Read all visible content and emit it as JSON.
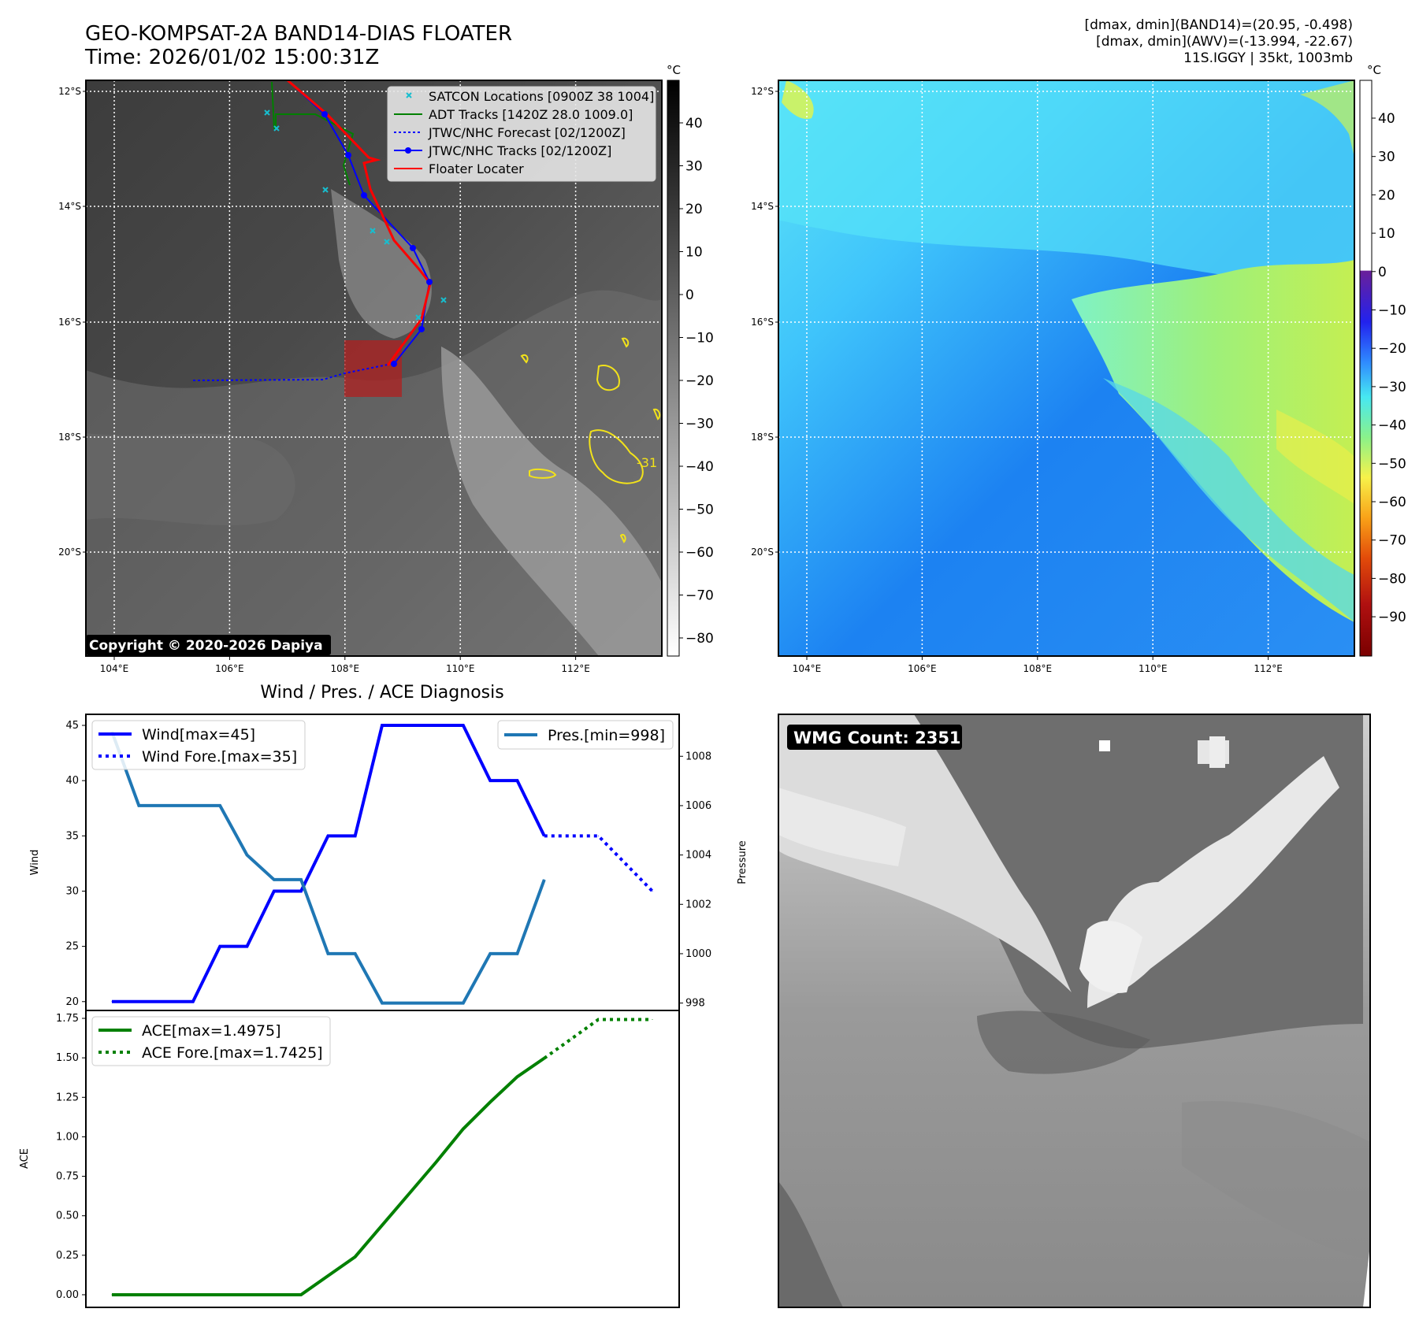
{
  "header": {
    "title_line1": "GEO-KOMPSAT-2A BAND14-DIAS FLOATER",
    "title_line2": "Time: 2026/01/02 15:00:31Z",
    "info_line1": "[dmax, dmin](BAND14)=(20.95, -0.498)",
    "info_line2": "[dmax, dmin](AWV)=(-13.994, -22.67)",
    "info_line3": "11S.IGGY | 35kt, 1003mb"
  },
  "map_common": {
    "lon_ticks": [
      "104°E",
      "106°E",
      "108°E",
      "110°E",
      "112°E"
    ],
    "lat_ticks": [
      "12°S",
      "14°S",
      "16°S",
      "18°S",
      "20°S"
    ]
  },
  "ir_panel": {
    "unit": "°C",
    "colorbar_ticks": [
      "40",
      "30",
      "20",
      "10",
      "0",
      "−10",
      "−20",
      "−30",
      "−40",
      "−50",
      "−60",
      "−70",
      "−80"
    ],
    "copyright": "Copyright © 2020-2026 Dapiya",
    "contour_label": "-31",
    "legend": [
      {
        "label": "SATCON Locations [0900Z 38 1004]",
        "color": "#17becf",
        "style": "x"
      },
      {
        "label": "ADT Tracks [1420Z 28.0 1009.0]",
        "color": "#008000",
        "style": "solid"
      },
      {
        "label": "JTWC/NHC Forecast [02/1200Z]",
        "color": "#0000ff",
        "style": "dotted"
      },
      {
        "label": "JTWC/NHC Tracks [02/1200Z]",
        "color": "#0000ff",
        "style": "solid-dot"
      },
      {
        "label": "Floater Locater",
        "color": "#ff0000",
        "style": "solid"
      }
    ]
  },
  "wv_panel": {
    "unit": "°C",
    "colorbar_ticks": [
      "40",
      "30",
      "20",
      "10",
      "0",
      "−10",
      "−20",
      "−30",
      "−40",
      "−50",
      "−60",
      "−70",
      "−80",
      "−90"
    ]
  },
  "wmg_panel": {
    "label": "WMG Count: 2351"
  },
  "chart_data": [
    {
      "type": "line",
      "title": "Wind / Pres. / ACE Diagnosis",
      "ylabel": "Wind",
      "y2label": "Pressure",
      "ylim": [
        19.2,
        46
      ],
      "y2lim": [
        997.7,
        1009.7
      ],
      "yticks": [
        "20",
        "25",
        "30",
        "35",
        "40",
        "45"
      ],
      "y2ticks": [
        "998",
        "1000",
        "1002",
        "1004",
        "1006",
        "1008"
      ],
      "series": [
        {
          "name": "Wind[max=45]",
          "color": "#0000ff",
          "style": "solid",
          "x": [
            0,
            1,
            2,
            3,
            4,
            5,
            6,
            7,
            8,
            9,
            10,
            11,
            12,
            13,
            14,
            15,
            16
          ],
          "values": [
            20,
            20,
            20,
            20,
            25,
            25,
            30,
            30,
            35,
            35,
            45,
            45,
            45,
            45,
            40,
            40,
            35
          ]
        },
        {
          "name": "Wind Fore.[max=35]",
          "color": "#0000ff",
          "style": "dotted",
          "x": [
            16,
            18,
            20
          ],
          "values": [
            35,
            35,
            30
          ]
        },
        {
          "name": "Pres.[min=998]",
          "color": "#1f77b4",
          "style": "solid",
          "axis": "right",
          "x": [
            0,
            1,
            2,
            3,
            4,
            5,
            6,
            7,
            8,
            9,
            10,
            11,
            12,
            13,
            14,
            15,
            16
          ],
          "values": [
            1009,
            1006,
            1006,
            1006,
            1006,
            1004,
            1003,
            1003,
            1000,
            1000,
            998,
            998,
            998,
            998,
            1000,
            1000,
            1003
          ]
        }
      ]
    },
    {
      "type": "line",
      "ylabel": "ACE",
      "ylim": [
        -0.08,
        1.8
      ],
      "yticks": [
        "0.00",
        "0.25",
        "0.50",
        "0.75",
        "1.00",
        "1.25",
        "1.50",
        "1.75"
      ],
      "series": [
        {
          "name": "ACE[max=1.4975]",
          "color": "#008000",
          "style": "solid",
          "x": [
            0,
            1,
            2,
            3,
            4,
            5,
            6,
            7,
            8,
            9,
            10,
            11,
            12,
            13,
            14,
            15,
            16
          ],
          "values": [
            0,
            0,
            0,
            0,
            0,
            0,
            0,
            0,
            0.12,
            0.24,
            0.44,
            0.64,
            0.84,
            1.05,
            1.22,
            1.38,
            1.4975
          ]
        },
        {
          "name": "ACE Fore.[max=1.7425]",
          "color": "#008000",
          "style": "dotted",
          "x": [
            16,
            17,
            18,
            19,
            20
          ],
          "values": [
            1.4975,
            1.62,
            1.7425,
            1.7425,
            1.7425
          ]
        }
      ]
    }
  ]
}
